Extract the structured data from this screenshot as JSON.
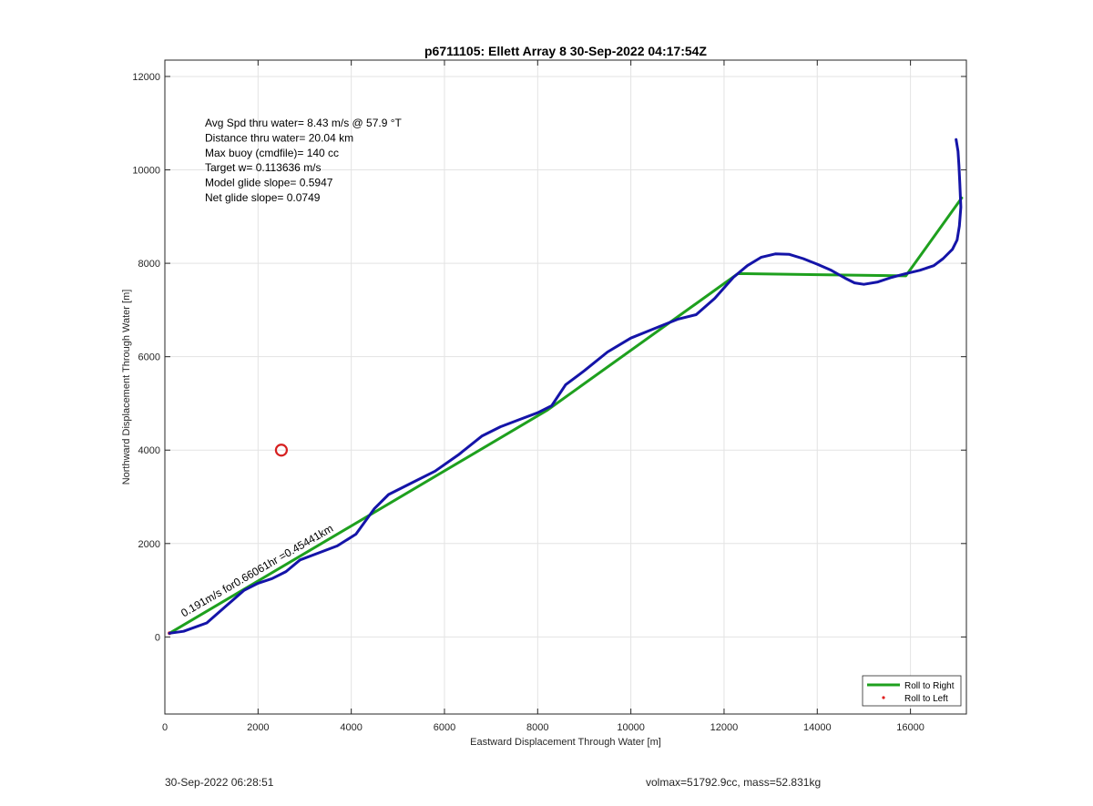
{
  "chart_data": {
    "type": "line",
    "title": "p6711105: Ellett Array 8 30-Sep-2022 04:17:54Z",
    "xlabel": "Eastward Displacement Through Water [m]",
    "ylabel": "Northward Displacement Through Water [m]",
    "xlim": [
      0,
      17200
    ],
    "ylim": [
      -1650,
      12350
    ],
    "xticks": [
      0,
      2000,
      4000,
      6000,
      8000,
      10000,
      12000,
      14000,
      16000
    ],
    "yticks": [
      0,
      2000,
      4000,
      6000,
      8000,
      10000,
      12000
    ],
    "grid": true,
    "legend_position": "bottom-right",
    "annotations": [
      "Avg Spd thru water=  8.43 m/s @  57.9 °T",
      "Distance thru water= 20.04 km",
      "Max buoy (cmdfile)= 140 cc",
      "Target w= 0.113636 m/s",
      "Model glide slope= 0.5947",
      "Net glide slope= 0.0749"
    ],
    "current_annotation": "0.191m/s for0.66061hr =0.45441km",
    "current_annotation_x": 600,
    "current_annotation_y": 500,
    "target_marker": {
      "x": 2500,
      "y": 4000,
      "color": "#d62020"
    },
    "series": [
      {
        "name": "Roll to Right",
        "color": "#1ea01e",
        "kind": "line",
        "x": [
          100,
          8200,
          12300,
          15900,
          17100
        ],
        "y": [
          80,
          4850,
          7780,
          7730,
          9400
        ]
      },
      {
        "name": "Roll to Left",
        "color": "#e02020",
        "kind": "marker",
        "x": [
          100
        ],
        "y": [
          80
        ]
      },
      {
        "color": "#1414a8",
        "kind": "line",
        "x": [
          100,
          400,
          900,
          1300,
          1700,
          2000,
          2300,
          2600,
          2900,
          3300,
          3700,
          4100,
          4500,
          4800,
          5300,
          5800,
          6300,
          6800,
          7200,
          7600,
          8000,
          8300,
          8600,
          9000,
          9500,
          10000,
          10500,
          11000,
          11400,
          11800,
          12200,
          12500,
          12800,
          13100,
          13400,
          13700,
          14000,
          14300,
          14600,
          14800,
          15000,
          15300,
          15600,
          15900,
          16200,
          16500,
          16700,
          16900,
          17000,
          17050,
          17080,
          17060,
          17040,
          17020,
          16980
        ],
        "y": [
          80,
          120,
          300,
          650,
          1000,
          1150,
          1250,
          1400,
          1650,
          1800,
          1950,
          2200,
          2750,
          3050,
          3300,
          3550,
          3900,
          4300,
          4500,
          4650,
          4800,
          4950,
          5400,
          5700,
          6100,
          6400,
          6600,
          6800,
          6900,
          7250,
          7700,
          7950,
          8130,
          8200,
          8190,
          8100,
          7980,
          7850,
          7680,
          7580,
          7550,
          7600,
          7700,
          7780,
          7850,
          7950,
          8100,
          8300,
          8500,
          8800,
          9200,
          9700,
          10100,
          10400,
          10650
        ]
      }
    ]
  },
  "footer": {
    "timestamp": "30-Sep-2022 06:28:51",
    "volmax": "volmax=51792.9cc, mass=52.831kg"
  }
}
